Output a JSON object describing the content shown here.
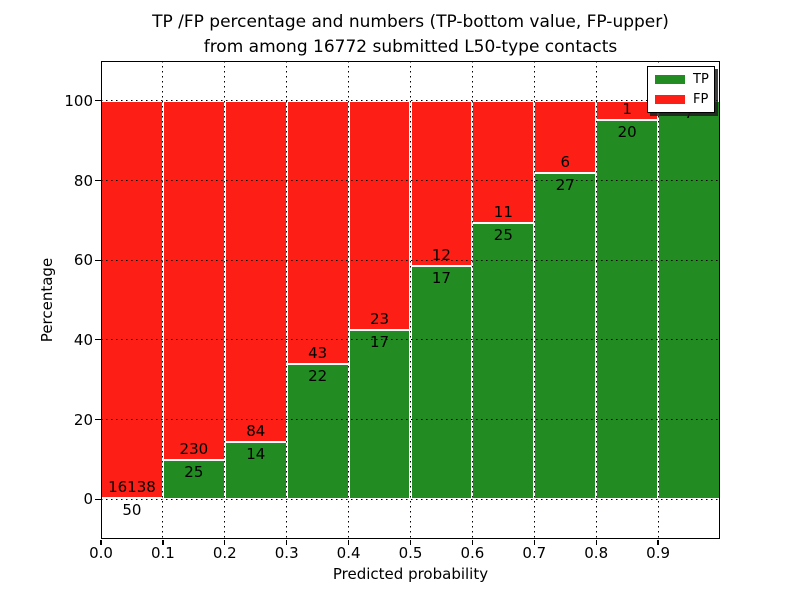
{
  "title": {
    "line1": "TP /FP percentage and numbers (TP-bottom value, FP-upper)",
    "line2": "from among 16772 submitted L50-type contacts"
  },
  "axes": {
    "xlabel": "Predicted probability",
    "ylabel": "Percentage",
    "x_tick_labels": [
      "0.0",
      "0.1",
      "0.2",
      "0.3",
      "0.4",
      "0.5",
      "0.6",
      "0.7",
      "0.8",
      "0.9"
    ],
    "x_tick_values": [
      0.0,
      0.1,
      0.2,
      0.3,
      0.4,
      0.5,
      0.6,
      0.7,
      0.8,
      0.9
    ],
    "y_ticks": [
      0,
      20,
      40,
      60,
      80,
      100
    ],
    "xlim": [
      0,
      1
    ],
    "ylim": [
      -10,
      110
    ],
    "grid_style": "dotted"
  },
  "legend": {
    "position": "upper right",
    "items": [
      {
        "label": "TP",
        "color": "#228b22"
      },
      {
        "label": "FP",
        "color": "#fd1f15"
      }
    ]
  },
  "chart_data": {
    "type": "bar",
    "stacked": true,
    "units": "percent",
    "title": "TP /FP percentage and numbers (TP-bottom value, FP-upper) from among 16772 submitted L50-type contacts",
    "xlabel": "Predicted probability",
    "ylabel": "Percentage",
    "x_bin_edges": [
      0.0,
      0.1,
      0.2,
      0.3,
      0.4,
      0.5,
      0.6,
      0.7,
      0.8,
      0.9,
      1.0
    ],
    "series": [
      {
        "name": "TP",
        "color": "#228b22",
        "counts": [
          50,
          25,
          14,
          22,
          17,
          17,
          25,
          27,
          20,
          7
        ],
        "percent": [
          0.31,
          9.8,
          14.29,
          33.85,
          42.5,
          58.62,
          69.44,
          81.82,
          95.24,
          100.0
        ]
      },
      {
        "name": "FP",
        "color": "#fd1f15",
        "counts": [
          16138,
          230,
          84,
          43,
          23,
          12,
          11,
          6,
          1,
          null
        ],
        "percent": [
          99.69,
          90.2,
          85.71,
          66.15,
          57.5,
          41.38,
          30.56,
          18.18,
          4.76,
          0.0
        ]
      }
    ],
    "ylim": [
      -10,
      110
    ],
    "xlim": [
      0,
      1
    ],
    "grid": true,
    "legend_position": "upper right",
    "bar_edge_color": "#ffffff"
  },
  "colors": {
    "tp": "#228b22",
    "fp": "#fd1f15",
    "grid": "#000000",
    "background": "#ffffff"
  }
}
